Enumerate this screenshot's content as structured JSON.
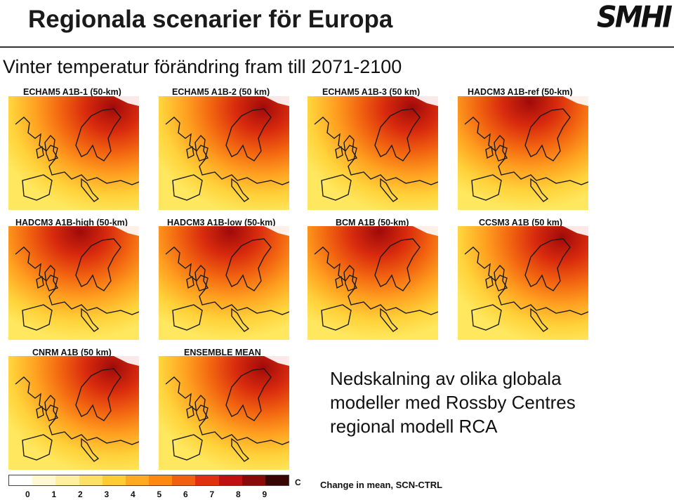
{
  "header": {
    "title": "Regionala scenarier för Europa",
    "logo_text": "SMHI",
    "subtitle": "Vinter temperatur förändring fram till 2071-2100"
  },
  "maps": [
    {
      "label": "ECHAM5 A1B-1 (50-km)",
      "hot_spot": "northeast"
    },
    {
      "label": "ECHAM5 A1B-2 (50 km)",
      "hot_spot": "northeast"
    },
    {
      "label": "ECHAM5 A1B-3 (50 km)",
      "hot_spot": "northeast"
    },
    {
      "label": "HADCM3 A1B-ref (50-km)",
      "hot_spot": "north"
    },
    {
      "label": "HADCM3 A1B-high (50-km)",
      "hot_spot": "north"
    },
    {
      "label": "HADCM3 A1B-low (50-km)",
      "hot_spot": "north"
    },
    {
      "label": "BCM A1B (50-km)",
      "hot_spot": "north"
    },
    {
      "label": "CCSM3 A1B (50 km)",
      "hot_spot": "northeast"
    },
    {
      "label": "CNRM A1B (50 km)",
      "hot_spot": "northeast"
    },
    {
      "label": "ENSEMBLE MEAN",
      "hot_spot": "northeast"
    }
  ],
  "caption": {
    "line1": "Nedskalning av olika globala",
    "line2": "modeller med Rossby Centres",
    "line3": "regional modell RCA"
  },
  "colorbar": {
    "ticks": [
      "0",
      "1",
      "2",
      "3",
      "4",
      "5",
      "6",
      "7",
      "8",
      "9"
    ],
    "unit": "C",
    "note": "Change in mean, SCN-CTRL",
    "colors": [
      "#ffffff",
      "#fff8d0",
      "#fff0a0",
      "#ffe066",
      "#ffcc33",
      "#ffaa22",
      "#ff8811",
      "#f06010",
      "#e03010",
      "#c01010",
      "#8a0a0a",
      "#3a0505"
    ]
  }
}
